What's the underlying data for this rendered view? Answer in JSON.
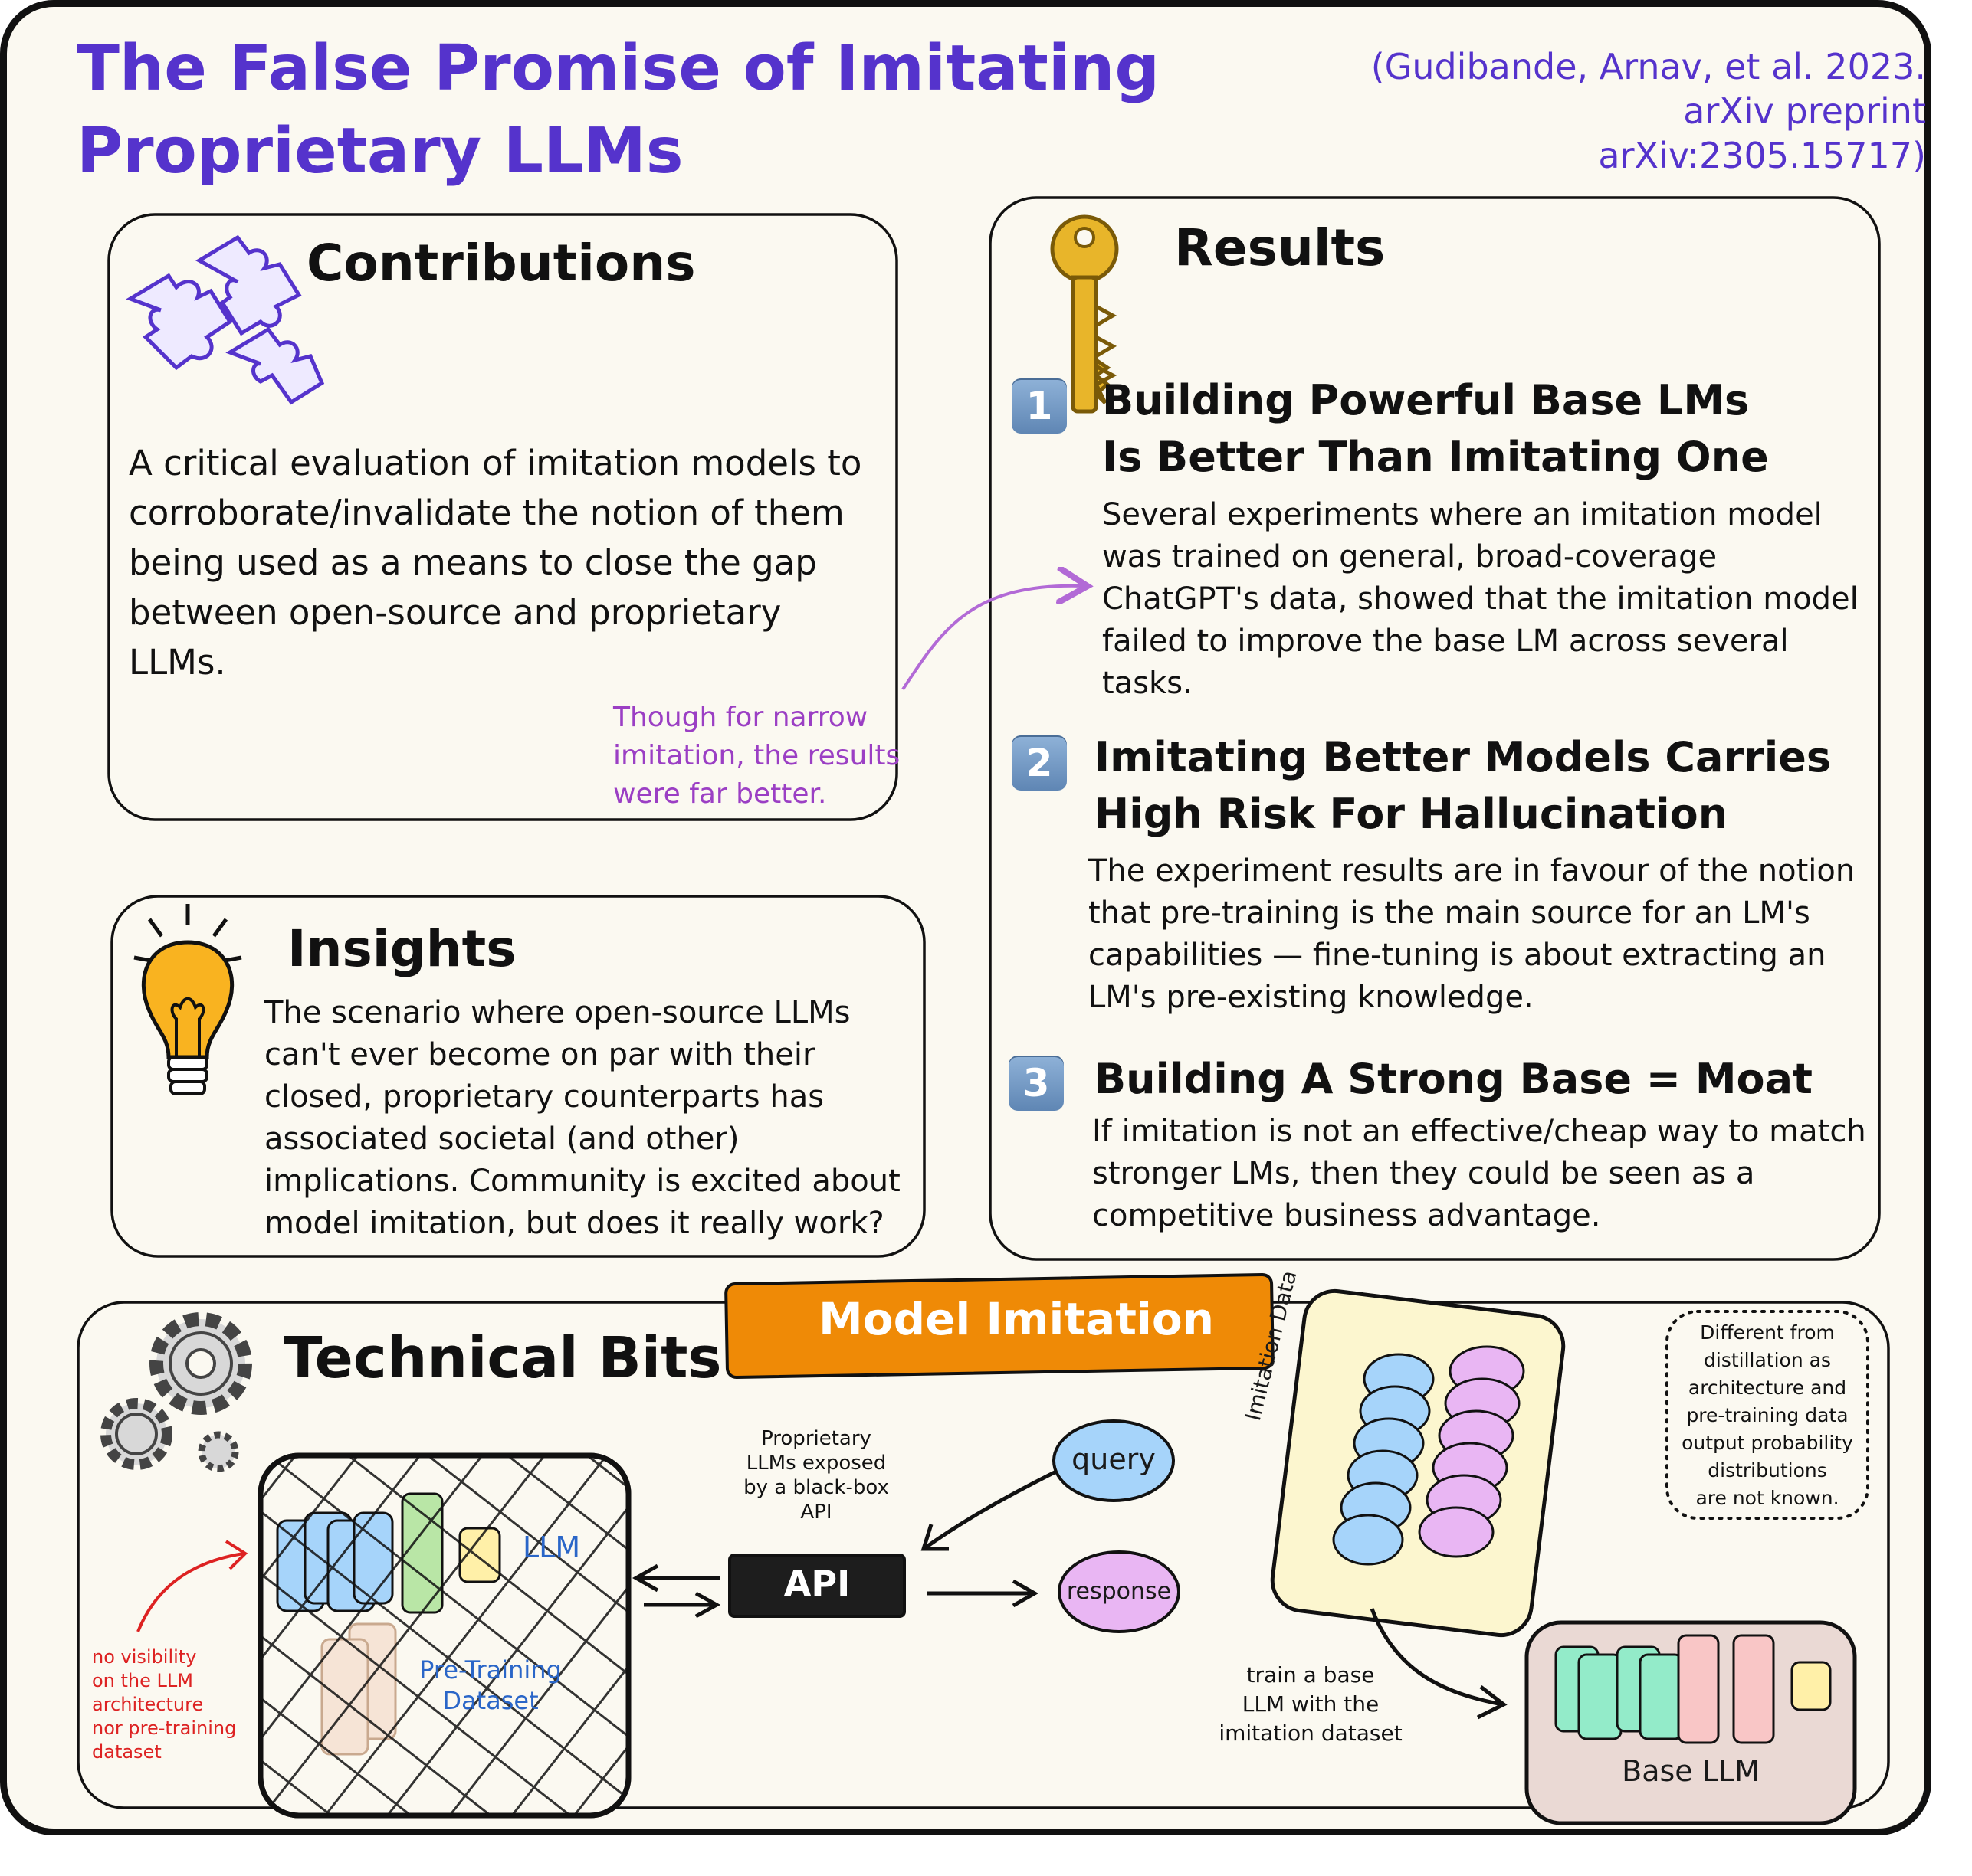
{
  "header": {
    "title_line1": "The False Promise of Imitating",
    "title_line2": "Proprietary LLMs",
    "citation_line1": "(Gudibande, Arnav, et al. 2023.",
    "citation_line2": "arXiv preprint",
    "citation_line3": "arXiv:2305.15717)"
  },
  "contributions": {
    "heading": "Contributions",
    "icon": "puzzle-icon",
    "body": "A critical evaluation of imitation models to corroborate/invalidate the notion of them being used as a means to close the gap between open-source and proprietary LLMs.",
    "note": "Though for narrow imitation, the results were far better."
  },
  "insights": {
    "heading": "Insights",
    "icon": "lightbulb-icon",
    "body": "The scenario where open-source LLMs can't ever become on par with their closed, proprietary counterparts has associated societal (and other) implications. Community is excited about model imitation, but does it really work?"
  },
  "results": {
    "heading": "Results",
    "icon": "key-icon",
    "items": [
      {
        "number": "1",
        "title_line1": "Building Powerful Base LMs",
        "title_line2": "Is Better Than Imitating One",
        "body": "Several experiments where an imitation model was trained on general, broad-coverage ChatGPT's data, showed that the imitation model failed to improve the base LM across several tasks."
      },
      {
        "number": "2",
        "title_line1": "Imitating Better Models Carries",
        "title_line2": "High Risk For Hallucination",
        "body": "The experiment results are in favour of the notion that pre-training is the main source for an LM's capabilities — fine-tuning is about extracting an LM's pre-existing knowledge."
      },
      {
        "number": "3",
        "title_line1": "Building A Strong Base = Moat",
        "body": "If imitation is not an effective/cheap way to match stronger LMs, then they could be seen as a competitive business advantage."
      }
    ]
  },
  "technical": {
    "heading": "Technical Bits",
    "icon": "gears-icon",
    "banner": "Model Imitation",
    "llm_label": "LLM",
    "pretraining_label_1": "Pre-Training",
    "pretraining_label_2": "Dataset",
    "no_visibility_note": [
      "no visibility",
      "on the LLM",
      "architecture",
      "nor pre-training",
      "dataset"
    ],
    "api_caption": [
      "Proprietary",
      "LLMs exposed",
      "by a black-box",
      "API"
    ],
    "api_label": "API",
    "query_label": "query",
    "response_label": "response",
    "imitation_data_label": "Imitation Data",
    "distillation_note": [
      "Different from",
      "distillation as",
      "architecture and",
      "pre-training data",
      "output probability",
      "distributions",
      "are not known."
    ],
    "train_note": [
      "train a base",
      "LLM with the",
      "imitation dataset"
    ],
    "base_llm_label": "Base LLM"
  },
  "colors": {
    "title": "#5533cc",
    "note": "#9b3fc4",
    "banner": "#ef8a06",
    "key": "#e8b52a",
    "bulb": "#f9b320",
    "query_fill": "#a6d4fa",
    "response_fill": "#e9b6f3",
    "base_llm_bg": "#ead9d4"
  }
}
